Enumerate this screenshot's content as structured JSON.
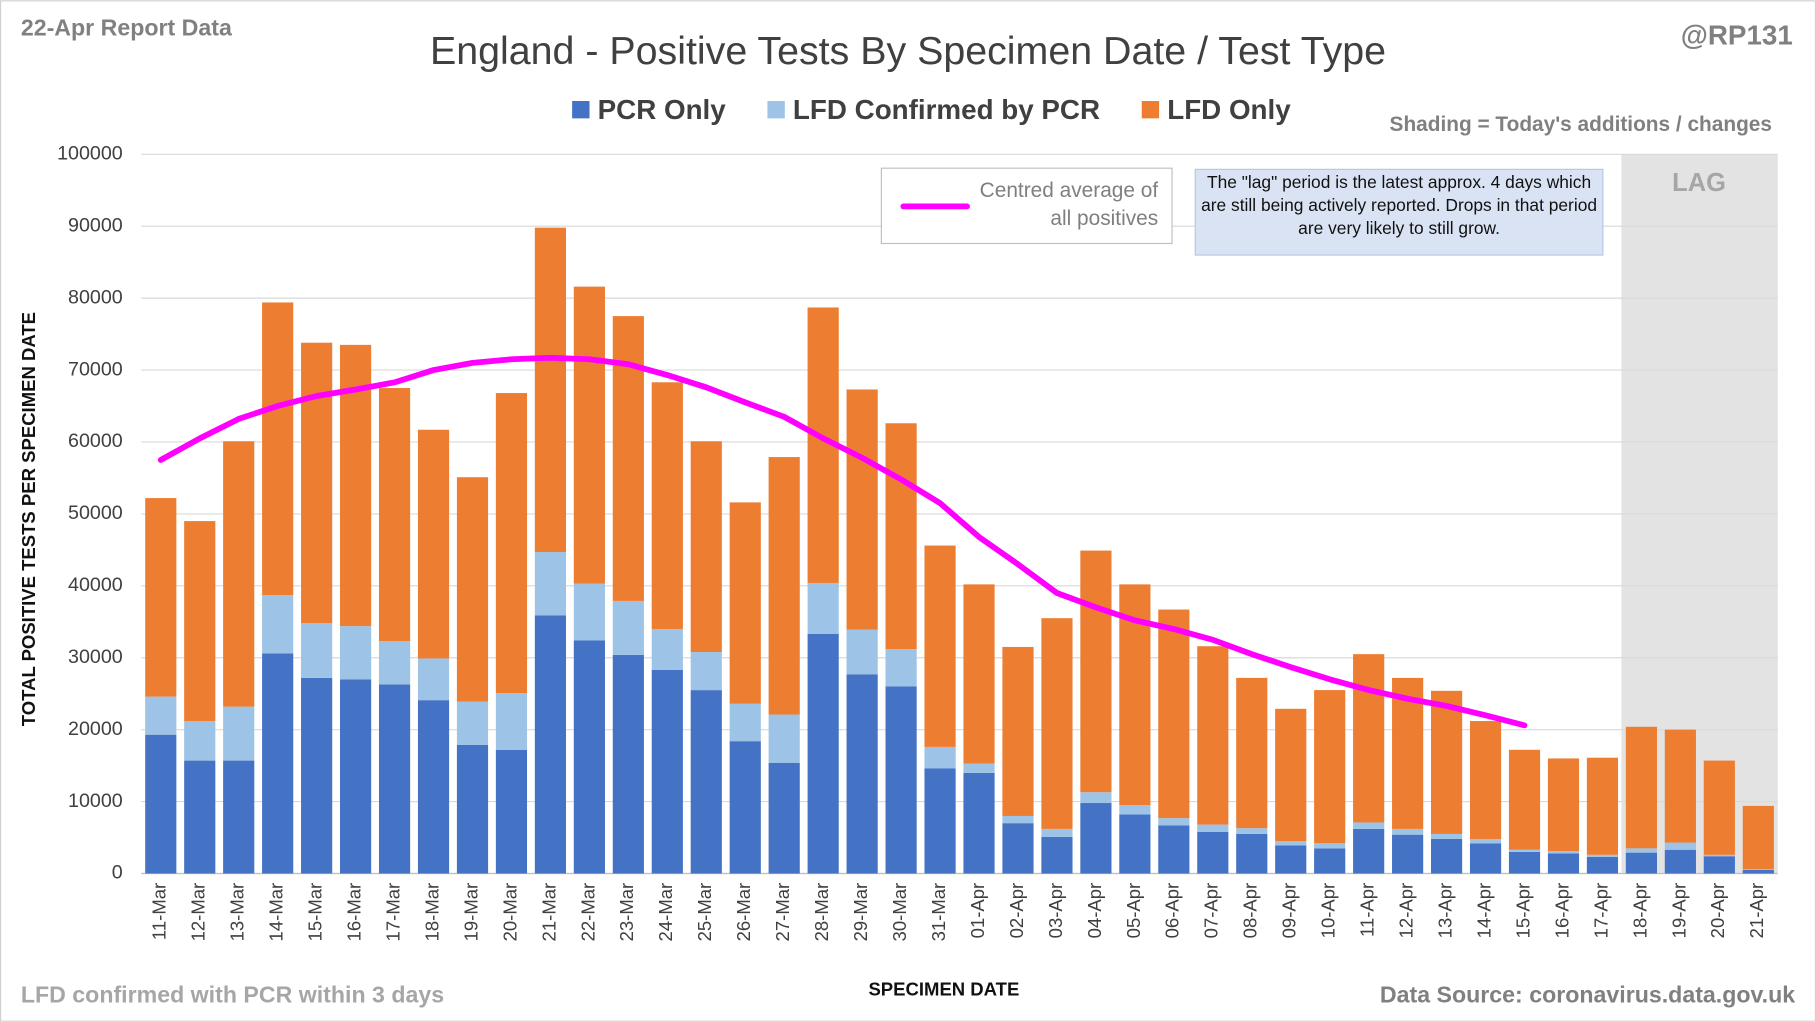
{
  "chart_data": {
    "type": "bar",
    "stacked": true,
    "title": "England - Positive Tests By Specimen Date / Test Type",
    "report_label": "22-Apr Report Data",
    "author": "@RP131",
    "shading_note": "Shading = Today's additions / changes",
    "footnote": "LFD confirmed with PCR within 3 days",
    "source": "Data Source: coronavirus.data.gov.uk",
    "lag_label": "LAG",
    "annotation": "The \"lag\" period is the latest approx. 4 days which are still being actively reported.  Drops in that period are very likely to still grow.",
    "xlabel": "SPECIMEN DATE",
    "ylabel": "TOTAL POSITIVE TESTS PER SPECIMEN DATE",
    "grid": true,
    "ylim": [
      0,
      100000
    ],
    "yticks": [
      0,
      10000,
      20000,
      30000,
      40000,
      50000,
      60000,
      70000,
      80000,
      90000,
      100000
    ],
    "categories": [
      "11-Mar",
      "12-Mar",
      "13-Mar",
      "14-Mar",
      "15-Mar",
      "16-Mar",
      "17-Mar",
      "18-Mar",
      "19-Mar",
      "20-Mar",
      "21-Mar",
      "22-Mar",
      "23-Mar",
      "24-Mar",
      "25-Mar",
      "26-Mar",
      "27-Mar",
      "28-Mar",
      "29-Mar",
      "30-Mar",
      "31-Mar",
      "01-Apr",
      "02-Apr",
      "03-Apr",
      "04-Apr",
      "05-Apr",
      "06-Apr",
      "07-Apr",
      "08-Apr",
      "09-Apr",
      "10-Apr",
      "11-Apr",
      "12-Apr",
      "13-Apr",
      "14-Apr",
      "15-Apr",
      "16-Apr",
      "17-Apr",
      "18-Apr",
      "19-Apr",
      "20-Apr",
      "21-Apr"
    ],
    "series": [
      {
        "name": "PCR Only",
        "color": "#4472c4",
        "values": [
          19300,
          15700,
          15700,
          30600,
          27200,
          27000,
          26300,
          24100,
          17900,
          17200,
          35900,
          32400,
          30400,
          28300,
          25500,
          18400,
          15400,
          33300,
          27700,
          26000,
          14600,
          14000,
          7000,
          5100,
          9800,
          8200,
          6700,
          5800,
          5500,
          3900,
          3500,
          6200,
          5400,
          4800,
          4200,
          3000,
          2800,
          2300,
          2900,
          3300,
          2400,
          500
        ]
      },
      {
        "name": "LFD Confirmed by PCR",
        "color": "#9dc3e6",
        "values": [
          5300,
          5500,
          7500,
          8100,
          7600,
          7400,
          6000,
          5800,
          6000,
          7900,
          8800,
          7900,
          7500,
          5700,
          5300,
          5200,
          6700,
          7100,
          6200,
          5200,
          3000,
          1300,
          1000,
          1100,
          1500,
          1300,
          1000,
          1000,
          800,
          600,
          700,
          900,
          800,
          700,
          600,
          300,
          300,
          300,
          600,
          1000,
          200,
          100
        ]
      },
      {
        "name": "LFD Only",
        "color": "#ed7d31",
        "values": [
          27600,
          27800,
          36900,
          40700,
          39000,
          39100,
          35200,
          31800,
          31200,
          41700,
          45100,
          41300,
          39600,
          34300,
          29300,
          28000,
          35800,
          38300,
          33400,
          31400,
          28000,
          24900,
          23500,
          29300,
          33600,
          30700,
          29000,
          24800,
          20900,
          18400,
          21300,
          23400,
          21000,
          19900,
          16400,
          13900,
          12900,
          13500,
          16900,
          15700,
          13100,
          8800
        ]
      },
      {
        "name": "Centred average of all positives",
        "type": "line",
        "color": "#ff00ff",
        "values": [
          57500,
          60500,
          63200,
          65000,
          66400,
          67300,
          68300,
          70000,
          71000,
          71500,
          71700,
          71500,
          70800,
          69300,
          67600,
          65500,
          63500,
          60500,
          57800,
          54800,
          51500,
          46800,
          43000,
          39000,
          37000,
          35200,
          34000,
          32500,
          30500,
          28700,
          27000,
          25500,
          24300,
          23300,
          22000,
          20600,
          null,
          null,
          null,
          null,
          null,
          null
        ]
      }
    ]
  }
}
